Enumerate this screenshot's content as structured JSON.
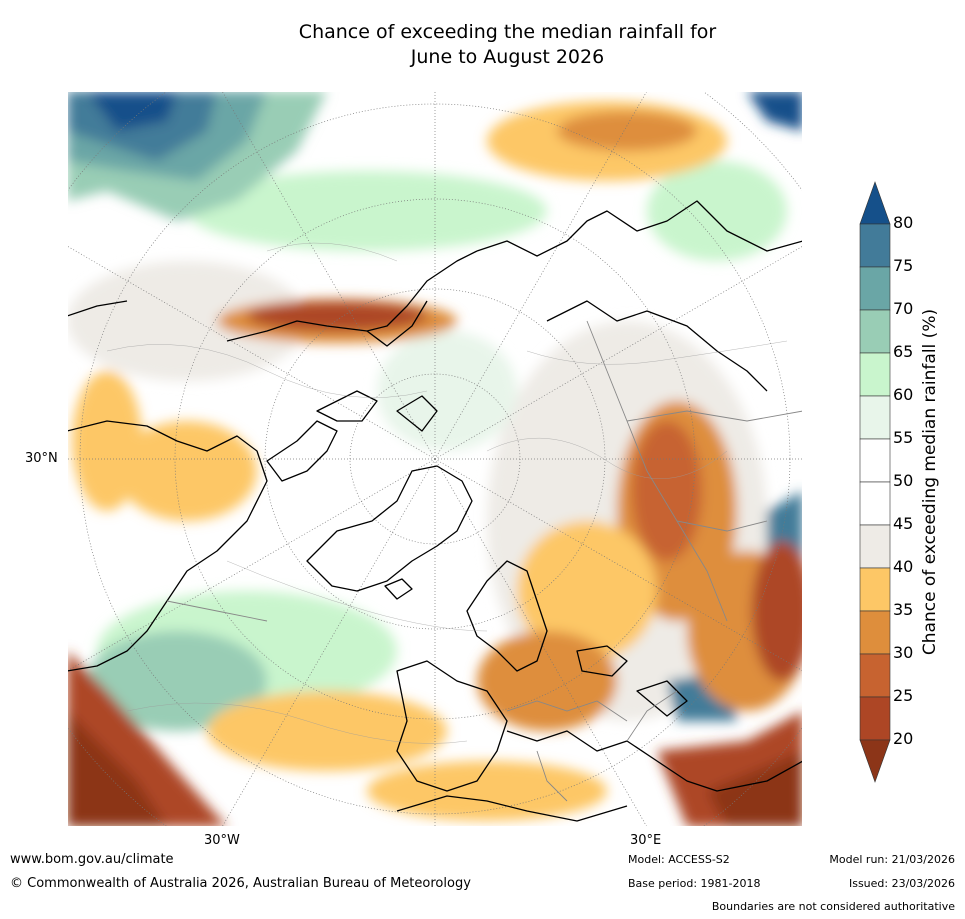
{
  "title": {
    "line1": "Chance of exceeding the median rainfall for",
    "line2": "June to August 2026"
  },
  "map": {
    "projection": "north-polar-stereographic",
    "lat_label": "30°N",
    "lon_labels": {
      "west": "30°W",
      "east": "30°E"
    },
    "colors": {
      "land_outline": "#000000",
      "borders": "#808080",
      "background": "#ffffff"
    }
  },
  "colorbar": {
    "title": "Chance of exceeding median rainfall (%)",
    "ticks": [
      "80",
      "75",
      "70",
      "65",
      "60",
      "55",
      "50",
      "45",
      "40",
      "35",
      "30",
      "25",
      "20"
    ],
    "bins": [
      {
        "from": 80,
        "to": 100,
        "color": "#15508a"
      },
      {
        "from": 75,
        "to": 80,
        "color": "#427b99"
      },
      {
        "from": 70,
        "to": 75,
        "color": "#6aa6a6"
      },
      {
        "from": 65,
        "to": 70,
        "color": "#99cdb5"
      },
      {
        "from": 60,
        "to": 65,
        "color": "#c9f5cd"
      },
      {
        "from": 55,
        "to": 60,
        "color": "#e8f5ea"
      },
      {
        "from": 50,
        "to": 55,
        "color": "#ffffff"
      },
      {
        "from": 45,
        "to": 50,
        "color": "#ffffff"
      },
      {
        "from": 40,
        "to": 45,
        "color": "#eeebe6"
      },
      {
        "from": 35,
        "to": 40,
        "color": "#fdc766"
      },
      {
        "from": 30,
        "to": 35,
        "color": "#de8e3c"
      },
      {
        "from": 25,
        "to": 30,
        "color": "#c76330"
      },
      {
        "from": 20,
        "to": 25,
        "color": "#ad4625"
      },
      {
        "from": 0,
        "to": 20,
        "color": "#8c3518"
      }
    ]
  },
  "footer": {
    "url": "www.bom.gov.au/climate",
    "copyright": "© Commonwealth of Australia 2026, Australian Bureau of Meteorology",
    "model": "Model: ACCESS-S2",
    "base_period": "Base period: 1981-2018",
    "model_run": "Model run: 21/03/2026",
    "issued": "Issued: 23/03/2026",
    "disclaimer": "Boundaries are not considered authoritative"
  }
}
